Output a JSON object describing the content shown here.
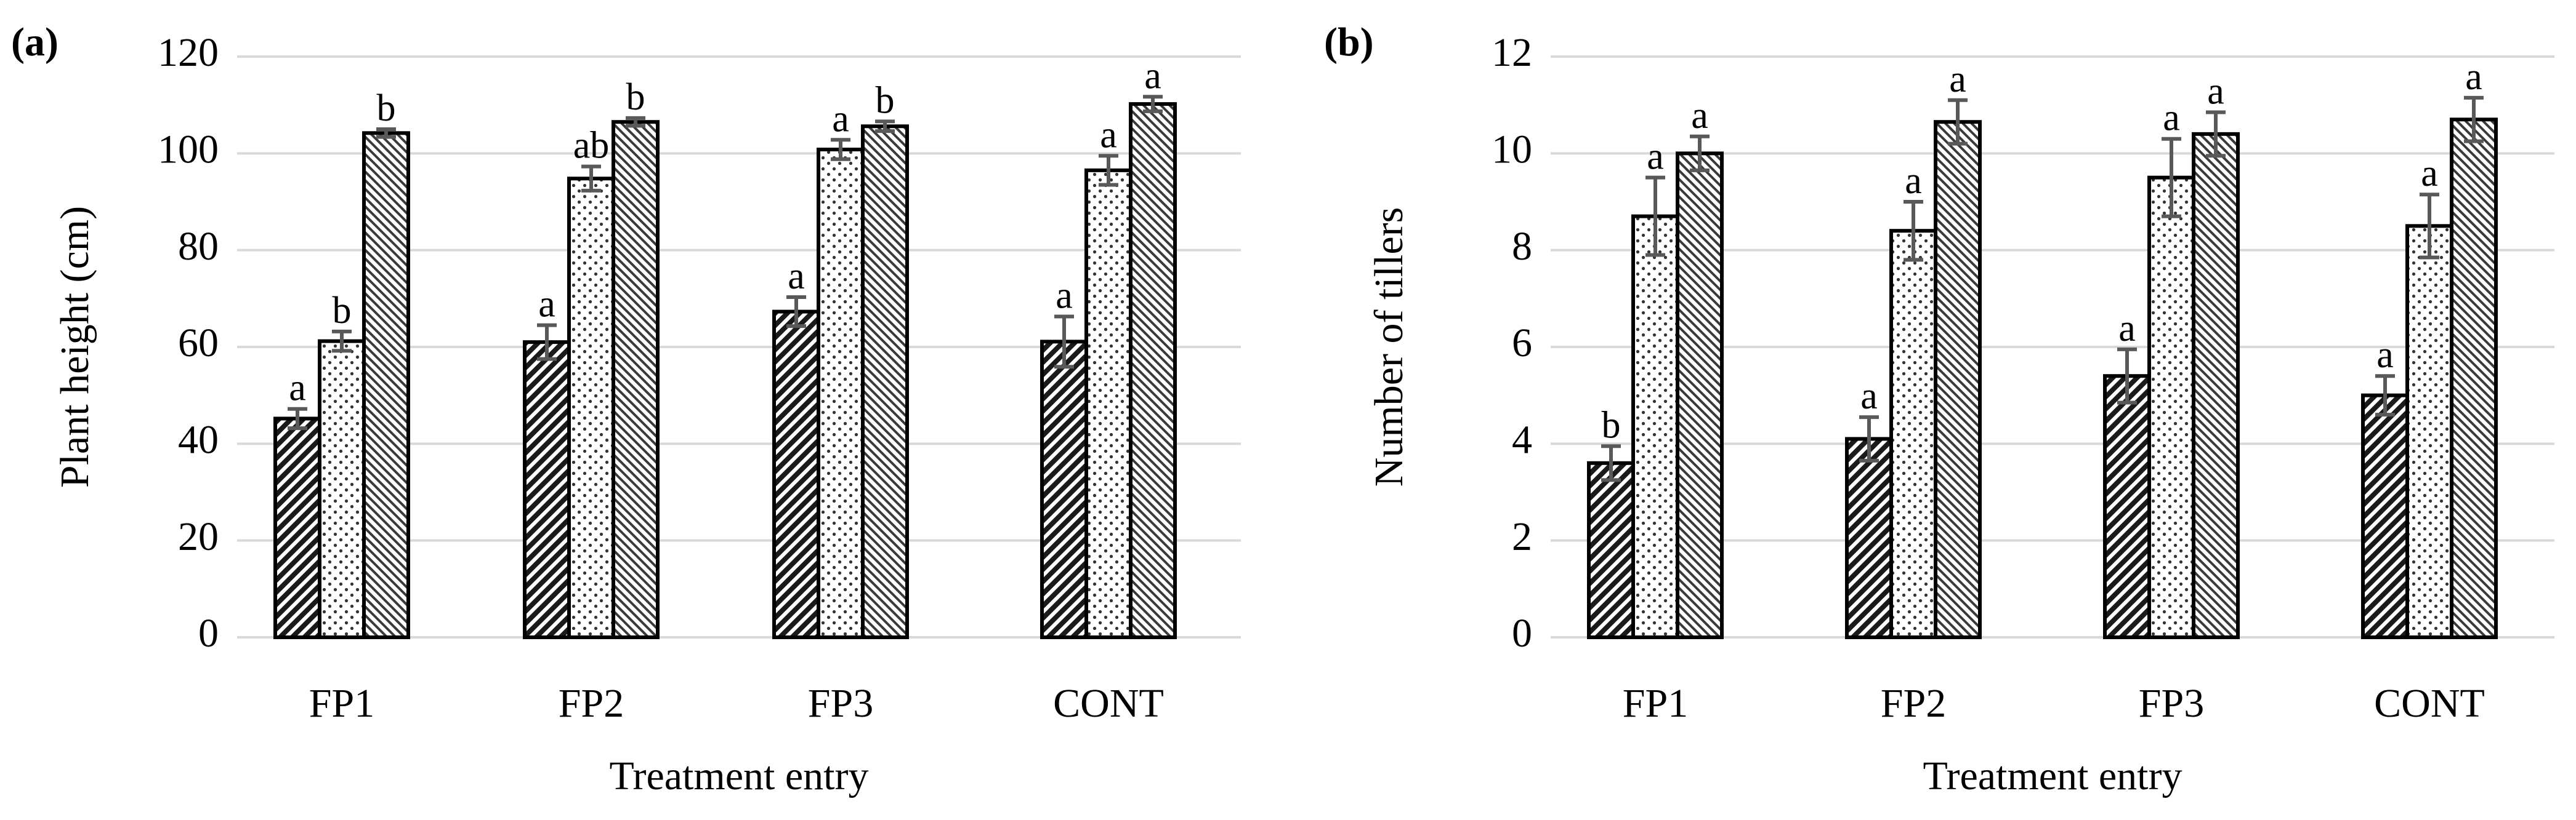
{
  "chart_data": [
    {
      "type": "bar",
      "panel_label": "(a)",
      "ylabel": "Plant height (cm)",
      "xlabel": "Treatment entry",
      "ylim": [
        0,
        120
      ],
      "yticks": [
        "0",
        "20",
        "40",
        "60",
        "80",
        "100",
        "120"
      ],
      "grid": true,
      "categories": [
        "FP1",
        "FP2",
        "FP3",
        "CONT"
      ],
      "series": [
        {
          "name": "Series 1 (dense diagonal hatch)",
          "pattern": "dense-diagonal",
          "values": [
            45.2,
            61.0,
            67.3,
            61.1
          ],
          "errors": [
            2.0,
            3.5,
            3.0,
            5.2
          ],
          "letters": [
            "a",
            "a",
            "a",
            "a"
          ]
        },
        {
          "name": "Series 2 (dotted)",
          "pattern": "dots",
          "values": [
            61.2,
            94.8,
            100.8,
            96.5
          ],
          "errors": [
            2.0,
            2.5,
            2.0,
            3.0
          ],
          "letters": [
            "b",
            "ab",
            "a",
            "a"
          ]
        },
        {
          "name": "Series 3 (fine diagonal hatch)",
          "pattern": "fine-diagonal",
          "values": [
            104.2,
            106.5,
            105.6,
            110.2
          ],
          "errors": [
            0.8,
            0.8,
            1.0,
            1.5
          ],
          "letters": [
            "b",
            "b",
            "b",
            "a"
          ]
        }
      ]
    },
    {
      "type": "bar",
      "panel_label": "(b)",
      "ylabel": "Number of tillers",
      "xlabel": "Treatment entry",
      "ylim": [
        0,
        12
      ],
      "yticks": [
        "0",
        "2",
        "4",
        "6",
        "8",
        "10",
        "12"
      ],
      "grid": true,
      "categories": [
        "FP1",
        "FP2",
        "FP3",
        "CONT"
      ],
      "series": [
        {
          "name": "Series 1 (dense diagonal hatch)",
          "pattern": "dense-diagonal",
          "values": [
            3.6,
            4.1,
            5.4,
            5.0
          ],
          "errors": [
            0.35,
            0.45,
            0.55,
            0.4
          ],
          "letters": [
            "b",
            "a",
            "a",
            "a"
          ]
        },
        {
          "name": "Series 2 (dotted)",
          "pattern": "dots",
          "values": [
            8.7,
            8.4,
            9.5,
            8.5
          ],
          "errors": [
            0.8,
            0.6,
            0.8,
            0.65
          ],
          "letters": [
            "a",
            "a",
            "a",
            "a"
          ]
        },
        {
          "name": "Series 3 (fine diagonal hatch)",
          "pattern": "fine-diagonal",
          "values": [
            10.0,
            10.65,
            10.4,
            10.7
          ],
          "errors": [
            0.35,
            0.45,
            0.45,
            0.45
          ],
          "letters": [
            "a",
            "a",
            "a",
            "a"
          ]
        }
      ]
    }
  ]
}
